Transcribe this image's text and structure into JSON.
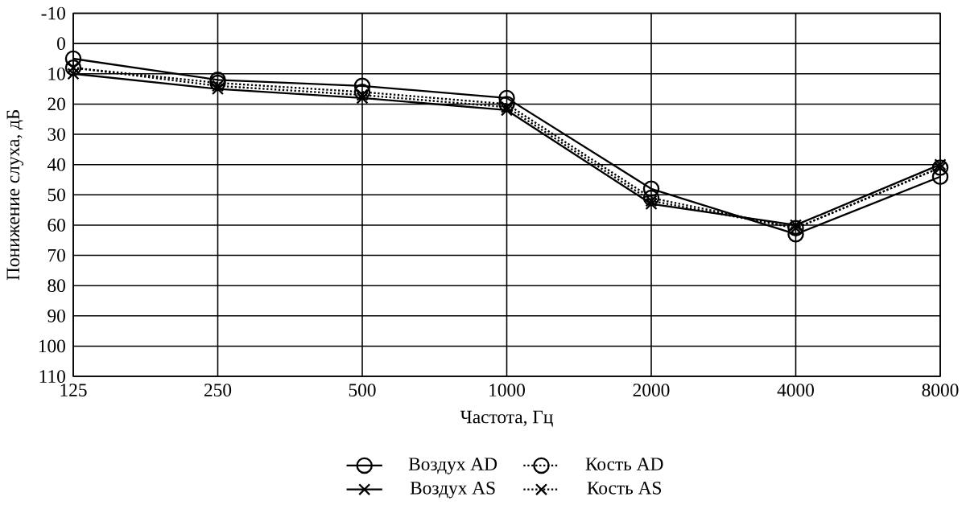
{
  "chart_data": {
    "type": "line",
    "xlabel": "Частота, Гц",
    "ylabel": "Понижение слуха, дБ",
    "categories": [
      "125",
      "250",
      "500",
      "1000",
      "2000",
      "4000",
      "8000"
    ],
    "ylim": [
      110,
      -10
    ],
    "yticks": [
      -10,
      0,
      10,
      20,
      30,
      40,
      50,
      60,
      70,
      80,
      90,
      100,
      110
    ],
    "grid": true,
    "legend": "bottom",
    "series": [
      {
        "name": "Воздух AD",
        "color": "#000000",
        "marker": "circle",
        "line_style": "solid",
        "values": [
          5,
          12,
          14,
          18,
          48,
          63,
          44
        ]
      },
      {
        "name": "Кость AD",
        "color": "#000000",
        "marker": "circle",
        "line_style": "dotted",
        "values": [
          8,
          13,
          16,
          20,
          51,
          61,
          41
        ]
      },
      {
        "name": "Воздух AS",
        "color": "#000000",
        "marker": "cross",
        "line_style": "solid",
        "values": [
          10,
          15,
          18,
          22,
          53,
          60,
          40
        ]
      },
      {
        "name": "Кость AS",
        "color": "#000000",
        "marker": "cross",
        "line_style": "dotted",
        "values": [
          8,
          14,
          17,
          21,
          52,
          61,
          41
        ]
      }
    ]
  }
}
